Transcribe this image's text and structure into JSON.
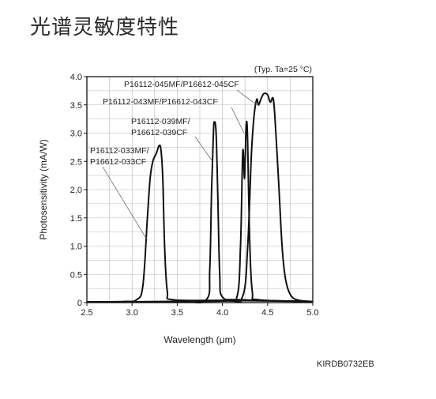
{
  "heading": "光谱灵敏度特性",
  "catalog_code": "KIRDB0732EB",
  "chart_data": {
    "type": "line",
    "title": "",
    "condition_note": "(Typ. Ta=25 °C)",
    "xlabel": "Wavelength (μm)",
    "ylabel": "Photosensitivity (mA/W)",
    "xlim": [
      2.5,
      5.0
    ],
    "ylim": [
      0,
      4.0
    ],
    "xticks": [
      "2.5",
      "3.0",
      "3.5",
      "4.0",
      "4.5",
      "5.0"
    ],
    "yticks": [
      "0",
      "0.5",
      "1.0",
      "1.5",
      "2.0",
      "2.5",
      "3.0",
      "3.5",
      "4.0"
    ],
    "grid": true,
    "series": [
      {
        "name": "P16112-033MF/P16612-033CF",
        "points": [
          [
            2.5,
            0.0
          ],
          [
            2.9,
            0.02
          ],
          [
            3.05,
            0.05
          ],
          [
            3.12,
            0.3
          ],
          [
            3.17,
            1.5
          ],
          [
            3.2,
            2.2
          ],
          [
            3.23,
            2.5
          ],
          [
            3.27,
            2.65
          ],
          [
            3.3,
            2.78
          ],
          [
            3.32,
            2.7
          ],
          [
            3.34,
            2.2
          ],
          [
            3.36,
            1.0
          ],
          [
            3.39,
            0.2
          ],
          [
            3.45,
            0.05
          ],
          [
            4.0,
            0.04
          ],
          [
            4.5,
            0.03
          ],
          [
            5.0,
            0.02
          ]
        ]
      },
      {
        "name": "P16112-039MF/P16612-039CF",
        "points": [
          [
            2.5,
            0.0
          ],
          [
            3.5,
            0.02
          ],
          [
            3.82,
            0.05
          ],
          [
            3.86,
            0.6
          ],
          [
            3.88,
            2.0
          ],
          [
            3.9,
            3.0
          ],
          [
            3.91,
            3.2
          ],
          [
            3.93,
            3.0
          ],
          [
            3.95,
            1.8
          ],
          [
            3.97,
            0.5
          ],
          [
            4.0,
            0.1
          ],
          [
            4.2,
            0.05
          ],
          [
            5.0,
            0.02
          ]
        ]
      },
      {
        "name": "P16112-043MF/P16612-043CF",
        "points": [
          [
            2.5,
            0.0
          ],
          [
            4.0,
            0.03
          ],
          [
            4.16,
            0.1
          ],
          [
            4.2,
            1.0
          ],
          [
            4.22,
            2.4
          ],
          [
            4.23,
            2.7
          ],
          [
            4.245,
            2.2
          ],
          [
            4.26,
            3.0
          ],
          [
            4.27,
            3.2
          ],
          [
            4.28,
            2.8
          ],
          [
            4.3,
            1.2
          ],
          [
            4.33,
            0.2
          ],
          [
            4.4,
            0.05
          ],
          [
            5.0,
            0.02
          ]
        ]
      },
      {
        "name": "P16112-045MF/P16612-045CF",
        "points": [
          [
            2.5,
            0.0
          ],
          [
            4.0,
            0.03
          ],
          [
            4.22,
            0.1
          ],
          [
            4.28,
            1.0
          ],
          [
            4.32,
            2.6
          ],
          [
            4.35,
            3.3
          ],
          [
            4.38,
            3.6
          ],
          [
            4.4,
            3.5
          ],
          [
            4.43,
            3.62
          ],
          [
            4.46,
            3.7
          ],
          [
            4.5,
            3.68
          ],
          [
            4.53,
            3.55
          ],
          [
            4.56,
            3.62
          ],
          [
            4.58,
            3.3
          ],
          [
            4.62,
            2.2
          ],
          [
            4.66,
            1.0
          ],
          [
            4.7,
            0.4
          ],
          [
            4.76,
            0.12
          ],
          [
            4.85,
            0.04
          ],
          [
            5.0,
            0.02
          ]
        ]
      }
    ]
  }
}
